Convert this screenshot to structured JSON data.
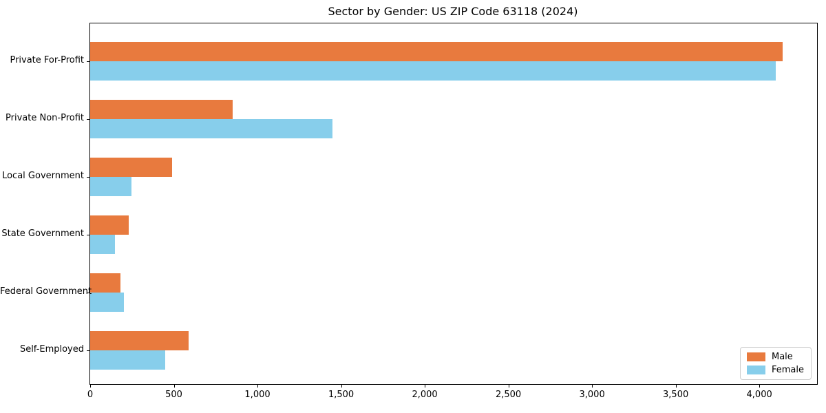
{
  "chart_data": {
    "type": "bar",
    "orientation": "horizontal",
    "title": "Sector by Gender: US ZIP Code 63118 (2024)",
    "categories": [
      "Private For-Profit",
      "Private Non-Profit",
      "Local Government",
      "State Government",
      "Federal Government",
      "Self-Employed"
    ],
    "series": [
      {
        "name": "Male",
        "color": "#e87a3e",
        "values": [
          4140,
          850,
          490,
          230,
          180,
          590
        ]
      },
      {
        "name": "Female",
        "color": "#87ceeb",
        "values": [
          4100,
          1450,
          245,
          150,
          200,
          450
        ]
      }
    ],
    "xlim": [
      0,
      4345
    ],
    "xticks": {
      "values": [
        0,
        500,
        1000,
        1500,
        2000,
        2500,
        3000,
        3500,
        4000
      ],
      "labels": [
        "0",
        "500",
        "1,000",
        "1,500",
        "2,000",
        "2,500",
        "3,000",
        "3,500",
        "4,000"
      ]
    },
    "grid": false,
    "legend": {
      "position": "lower right",
      "entries": [
        "Male",
        "Female"
      ]
    },
    "colors": {
      "male": "#e87a3e",
      "female": "#87ceeb",
      "spine": "#000000",
      "legend_border": "#cccccc",
      "background": "#ffffff"
    }
  }
}
